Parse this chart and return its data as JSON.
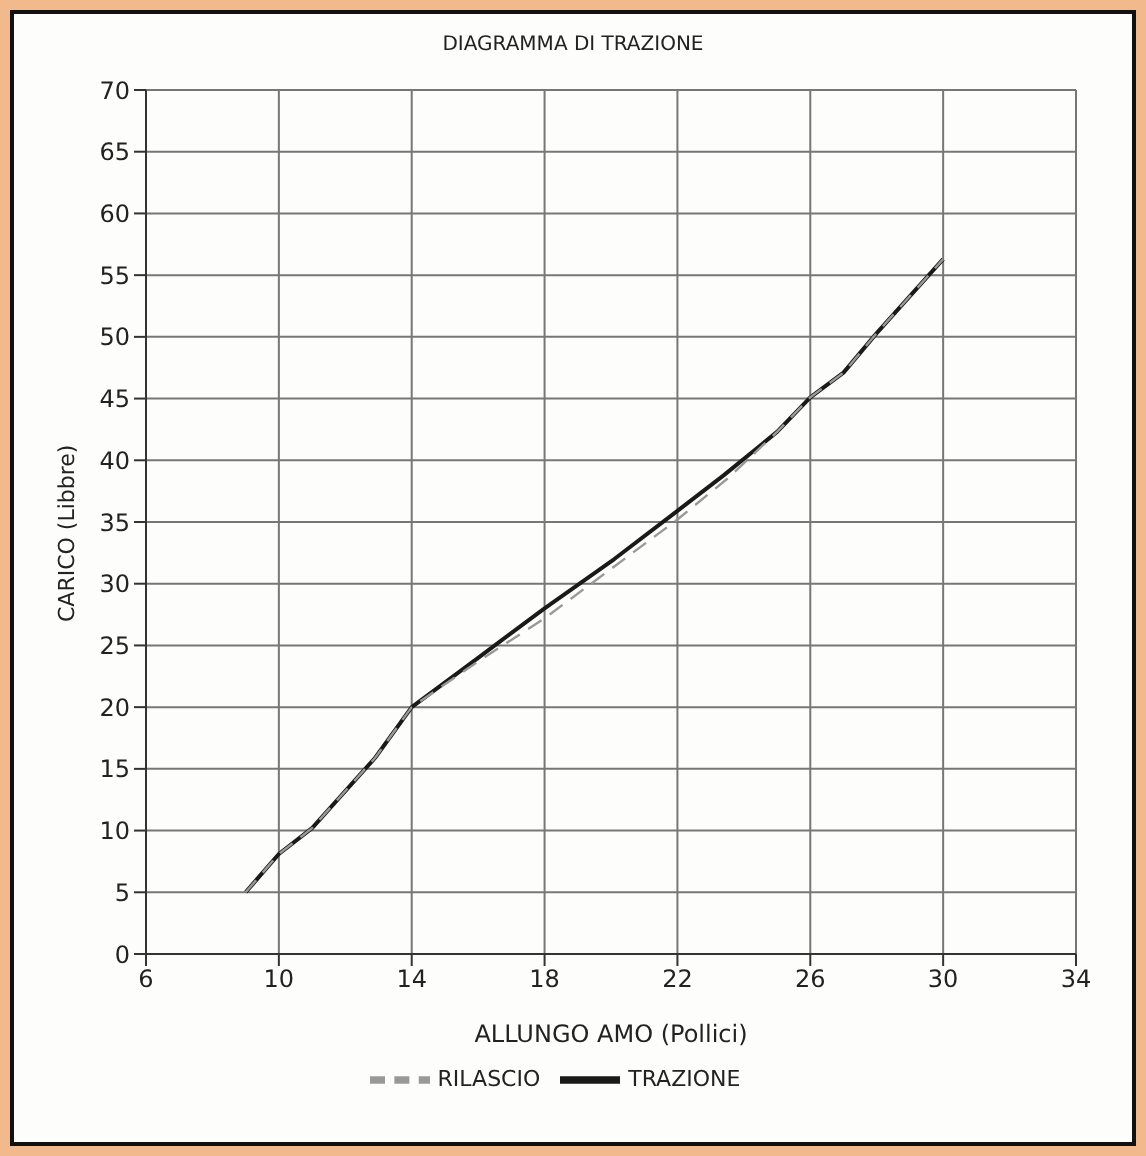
{
  "chart_data": {
    "type": "line",
    "title": "DIAGRAMMA DI TRAZIONE",
    "xlabel": "ALLUNGO AMO (Pollici)",
    "ylabel": "CARICO (Libbre)",
    "xlim": [
      6,
      34
    ],
    "xticks": [
      6,
      10,
      14,
      18,
      22,
      26,
      30,
      34
    ],
    "ylim": [
      0,
      70
    ],
    "yticks": [
      0,
      5,
      10,
      15,
      20,
      25,
      30,
      35,
      40,
      45,
      50,
      55,
      60,
      65,
      70
    ],
    "grid": true,
    "legend": "bottom",
    "marker": "none",
    "series": [
      {
        "name": "TRAZIONE",
        "color": "#1a1a1a",
        "line_style": "solid",
        "x": [
          9,
          10,
          11,
          12.9,
          14,
          16,
          18,
          20.1,
          22,
          23.4,
          25,
          26,
          27,
          28,
          30
        ],
        "values": [
          5,
          8.1,
          10.2,
          15.9,
          20,
          24,
          28,
          32,
          35.9,
          38.8,
          42.3,
          45.1,
          47.1,
          50.3,
          56.3
        ]
      },
      {
        "name": "RILASCIO",
        "color": "#999999",
        "line_style": "dashed",
        "x": [
          9,
          10,
          11,
          12.9,
          14,
          16,
          18,
          20,
          22,
          23.5,
          25,
          26,
          27,
          28,
          30
        ],
        "values": [
          5,
          8.1,
          10.2,
          15.9,
          20,
          23.7,
          27.2,
          31.2,
          35.2,
          38.5,
          42.3,
          45.1,
          47.1,
          50.3,
          56.3
        ]
      }
    ]
  }
}
